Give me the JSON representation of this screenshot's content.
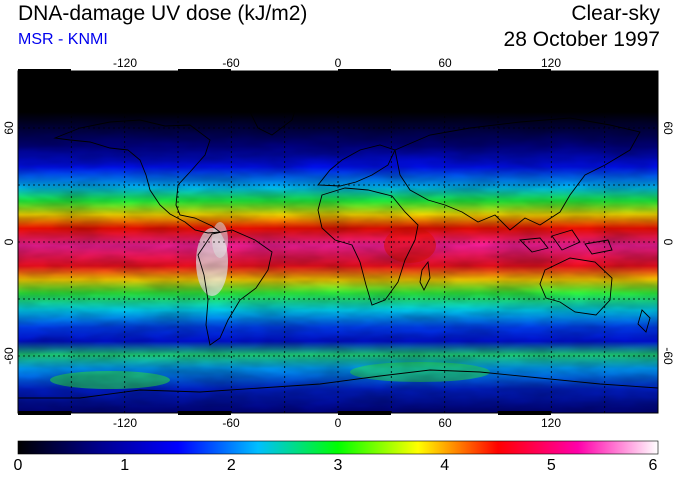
{
  "header": {
    "title": "DNA-damage UV dose (kJ/m2)",
    "subtitle": "MSR - KNMI",
    "sky_condition": "Clear-sky",
    "date": "28 October 1997"
  },
  "map": {
    "projection": "equirectangular",
    "lon_range": [
      -180,
      180
    ],
    "lat_range": [
      -90,
      90
    ],
    "lon_ticks": [
      "-120",
      "-60",
      "0",
      "60",
      "120"
    ],
    "lat_ticks": [
      "60",
      "0",
      "-60"
    ],
    "gridlines": "dashed, every 30 degrees",
    "colors": {
      "subtitle": "#0000ee"
    }
  },
  "colorbar": {
    "min": 0,
    "max": 6,
    "tick_labels": [
      "0",
      "1",
      "2",
      "3",
      "4",
      "5",
      "6"
    ],
    "colors": [
      "#000000",
      "#00008b",
      "#0000ff",
      "#00bfff",
      "#00ff00",
      "#ffff00",
      "#ff0000",
      "#ff00aa",
      "#ffffff"
    ]
  }
}
